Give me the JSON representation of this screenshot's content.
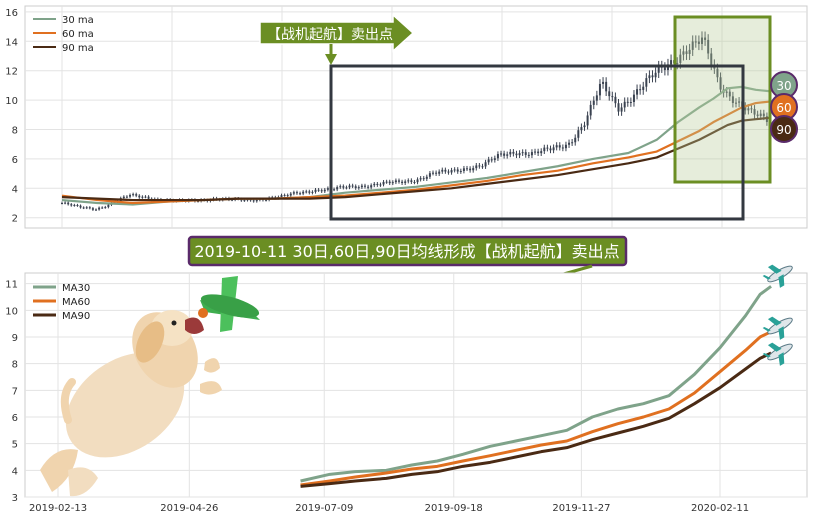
{
  "top_banner": "【战机起航】卖出点",
  "middle_banner": "2019-10-11 30日,60日,90日均线形成【战机起航】卖出点",
  "badges": [
    "30",
    "60",
    "90"
  ],
  "colors": {
    "ma30": "#7fa38a",
    "ma60": "#e07020",
    "ma90": "#4a2a14",
    "candle": "#3a4250",
    "banner_green": "#6b8e23",
    "banner_purple": "#5a2a6a",
    "box_dark": "#333840",
    "box_green": "#6b8e23"
  },
  "chart_data": [
    {
      "type": "line",
      "title": "",
      "legend": [
        "30 ma",
        "60 ma",
        "90 ma"
      ],
      "legend_position": "top-left",
      "ylim": [
        1.3,
        16.4
      ],
      "yticks": [
        2,
        4,
        6,
        8,
        10,
        12,
        14,
        16
      ],
      "grid": true,
      "x": [
        0,
        0.05,
        0.1,
        0.15,
        0.2,
        0.25,
        0.3,
        0.35,
        0.4,
        0.45,
        0.5,
        0.55,
        0.6,
        0.65,
        0.7,
        0.75,
        0.8,
        0.84,
        0.87,
        0.9,
        0.92,
        0.94,
        0.96,
        0.98,
        1.0
      ],
      "series": [
        {
          "name": "30 ma",
          "values": [
            3.2,
            3.0,
            2.9,
            3.1,
            3.2,
            3.3,
            3.3,
            3.4,
            3.7,
            3.9,
            4.1,
            4.4,
            4.7,
            5.1,
            5.5,
            6.0,
            6.4,
            7.3,
            8.5,
            9.5,
            10.1,
            10.8,
            10.9,
            10.7,
            10.6
          ]
        },
        {
          "name": "60 ma",
          "values": [
            3.5,
            3.2,
            3.0,
            3.1,
            3.2,
            3.3,
            3.3,
            3.4,
            3.5,
            3.7,
            3.9,
            4.2,
            4.5,
            4.9,
            5.2,
            5.7,
            6.1,
            6.5,
            7.2,
            7.9,
            8.5,
            9.0,
            9.5,
            9.8,
            9.9
          ]
        },
        {
          "name": "90 ma",
          "values": [
            3.4,
            3.3,
            3.2,
            3.2,
            3.2,
            3.3,
            3.3,
            3.3,
            3.4,
            3.6,
            3.8,
            4.0,
            4.3,
            4.6,
            4.9,
            5.3,
            5.7,
            6.1,
            6.7,
            7.3,
            7.8,
            8.3,
            8.6,
            8.7,
            8.8
          ]
        }
      ],
      "candles": [
        3.0,
        2.7,
        2.6,
        3.0,
        3.5,
        3.4,
        3.2,
        3.1,
        3.2,
        3.3,
        3.2,
        3.2,
        3.3,
        3.4,
        3.7,
        3.9,
        3.9,
        4.1,
        4.2,
        4.3,
        4.4,
        4.6,
        5.0,
        5.1,
        5.4,
        5.6,
        6.2,
        6.5,
        6.4,
        6.6,
        7.0,
        8.5,
        11.0,
        9.5,
        10.5,
        11.5,
        12.5,
        13.5,
        14.0,
        11.0,
        10.0,
        9.0,
        8.5
      ]
    },
    {
      "type": "line",
      "title": "",
      "legend": [
        "MA30",
        "MA60",
        "MA90"
      ],
      "legend_position": "top-left",
      "ylim": [
        3,
        11.4
      ],
      "yticks": [
        3,
        4,
        5,
        6,
        7,
        8,
        9,
        10,
        11
      ],
      "xtick_labels": [
        "2019-02-13",
        "2019-04-26",
        "2019-07-09",
        "2019-09-18",
        "2019-11-27",
        "2020-02-11"
      ],
      "grid": true,
      "series": [
        {
          "name": "MA30",
          "x": [
            "2019-06-26",
            "2019-07-12",
            "2019-07-26",
            "2019-08-12",
            "2019-08-26",
            "2019-09-09",
            "2019-09-23",
            "2019-10-08",
            "2019-10-22",
            "2019-11-05",
            "2019-11-19",
            "2019-12-03",
            "2019-12-17",
            "2019-12-31",
            "2020-01-14",
            "2020-01-28",
            "2020-02-11",
            "2020-02-25",
            "2020-03-04",
            "2020-03-10"
          ],
          "values": [
            3.6,
            3.85,
            3.95,
            4.0,
            4.2,
            4.35,
            4.6,
            4.9,
            5.1,
            5.3,
            5.5,
            6.0,
            6.3,
            6.5,
            6.8,
            7.6,
            8.6,
            9.8,
            10.6,
            10.9
          ]
        },
        {
          "name": "MA60",
          "x": [
            "2019-06-26",
            "2019-07-12",
            "2019-07-26",
            "2019-08-12",
            "2019-08-26",
            "2019-09-09",
            "2019-09-23",
            "2019-10-08",
            "2019-10-22",
            "2019-11-05",
            "2019-11-19",
            "2019-12-03",
            "2019-12-17",
            "2019-12-31",
            "2020-01-14",
            "2020-01-28",
            "2020-02-11",
            "2020-02-25",
            "2020-03-04",
            "2020-03-10"
          ],
          "values": [
            3.45,
            3.6,
            3.75,
            3.9,
            4.05,
            4.15,
            4.35,
            4.55,
            4.75,
            4.95,
            5.1,
            5.45,
            5.75,
            6.0,
            6.3,
            6.9,
            7.7,
            8.5,
            9.0,
            9.2
          ]
        },
        {
          "name": "MA90",
          "x": [
            "2019-06-26",
            "2019-07-12",
            "2019-07-26",
            "2019-08-12",
            "2019-08-26",
            "2019-09-09",
            "2019-09-23",
            "2019-10-08",
            "2019-10-22",
            "2019-11-05",
            "2019-11-19",
            "2019-12-03",
            "2019-12-17",
            "2019-12-31",
            "2020-01-14",
            "2020-01-28",
            "2020-02-11",
            "2020-02-25",
            "2020-03-04",
            "2020-03-10"
          ],
          "values": [
            3.4,
            3.5,
            3.6,
            3.7,
            3.85,
            3.95,
            4.15,
            4.3,
            4.5,
            4.7,
            4.85,
            5.15,
            5.4,
            5.65,
            5.95,
            6.5,
            7.1,
            7.8,
            8.2,
            8.4
          ]
        }
      ]
    }
  ]
}
